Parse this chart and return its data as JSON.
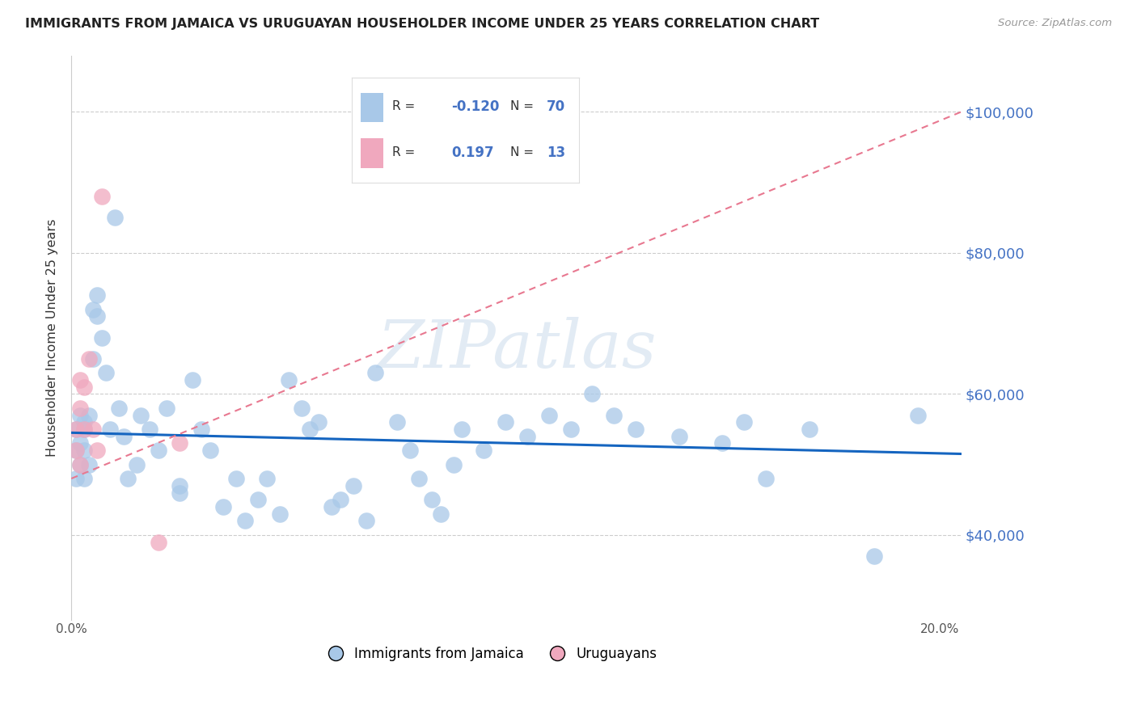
{
  "title": "IMMIGRANTS FROM JAMAICA VS URUGUAYAN HOUSEHOLDER INCOME UNDER 25 YEARS CORRELATION CHART",
  "source": "Source: ZipAtlas.com",
  "ylabel": "Householder Income Under 25 years",
  "legend_label1": "Immigrants from Jamaica",
  "legend_label2": "Uruguayans",
  "r1_val": "-0.120",
  "n1_val": "70",
  "r2_val": "0.197",
  "n2_val": "13",
  "xlim": [
    0.0,
    0.205
  ],
  "ylim": [
    28000,
    108000
  ],
  "yticks": [
    40000,
    60000,
    80000,
    100000
  ],
  "ytick_labels": [
    "$40,000",
    "$60,000",
    "$80,000",
    "$100,000"
  ],
  "xticks": [
    0.0,
    0.05,
    0.1,
    0.15,
    0.2
  ],
  "xtick_labels": [
    "0.0%",
    "",
    "",
    "",
    "20.0%"
  ],
  "watermark": "ZIPatlas",
  "color_jamaica": "#a8c8e8",
  "color_uruguay": "#f0a8be",
  "color_line_jamaica": "#1565c0",
  "color_line_uruguay": "#e87890",
  "color_axis_right": "#4472c4",
  "color_legend_text": "#4472c4",
  "jamaica_x": [
    0.001,
    0.001,
    0.001,
    0.002,
    0.002,
    0.002,
    0.003,
    0.003,
    0.003,
    0.003,
    0.004,
    0.004,
    0.005,
    0.005,
    0.006,
    0.006,
    0.007,
    0.008,
    0.009,
    0.01,
    0.011,
    0.012,
    0.013,
    0.015,
    0.016,
    0.018,
    0.02,
    0.022,
    0.025,
    0.025,
    0.028,
    0.03,
    0.032,
    0.035,
    0.038,
    0.04,
    0.043,
    0.045,
    0.048,
    0.05,
    0.053,
    0.055,
    0.057,
    0.06,
    0.062,
    0.065,
    0.068,
    0.07,
    0.075,
    0.078,
    0.08,
    0.083,
    0.085,
    0.088,
    0.09,
    0.095,
    0.1,
    0.105,
    0.11,
    0.115,
    0.12,
    0.125,
    0.13,
    0.14,
    0.15,
    0.155,
    0.16,
    0.17,
    0.185,
    0.195
  ],
  "jamaica_y": [
    52000,
    48000,
    55000,
    57000,
    53000,
    50000,
    56000,
    52000,
    48000,
    55000,
    50000,
    57000,
    65000,
    72000,
    74000,
    71000,
    68000,
    63000,
    55000,
    85000,
    58000,
    54000,
    48000,
    50000,
    57000,
    55000,
    52000,
    58000,
    47000,
    46000,
    62000,
    55000,
    52000,
    44000,
    48000,
    42000,
    45000,
    48000,
    43000,
    62000,
    58000,
    55000,
    56000,
    44000,
    45000,
    47000,
    42000,
    63000,
    56000,
    52000,
    48000,
    45000,
    43000,
    50000,
    55000,
    52000,
    56000,
    54000,
    57000,
    55000,
    60000,
    57000,
    55000,
    54000,
    53000,
    56000,
    48000,
    55000,
    37000,
    57000
  ],
  "uruguay_x": [
    0.001,
    0.001,
    0.002,
    0.002,
    0.002,
    0.003,
    0.003,
    0.004,
    0.005,
    0.006,
    0.007,
    0.02,
    0.025
  ],
  "uruguay_y": [
    55000,
    52000,
    58000,
    62000,
    50000,
    55000,
    61000,
    65000,
    55000,
    52000,
    88000,
    39000,
    53000
  ],
  "jline_x0": 0.0,
  "jline_x1": 0.205,
  "jline_y0": 54500,
  "jline_y1": 51500,
  "uline_x0": 0.0,
  "uline_x1": 0.205,
  "uline_y0": 48000,
  "uline_y1": 100000
}
